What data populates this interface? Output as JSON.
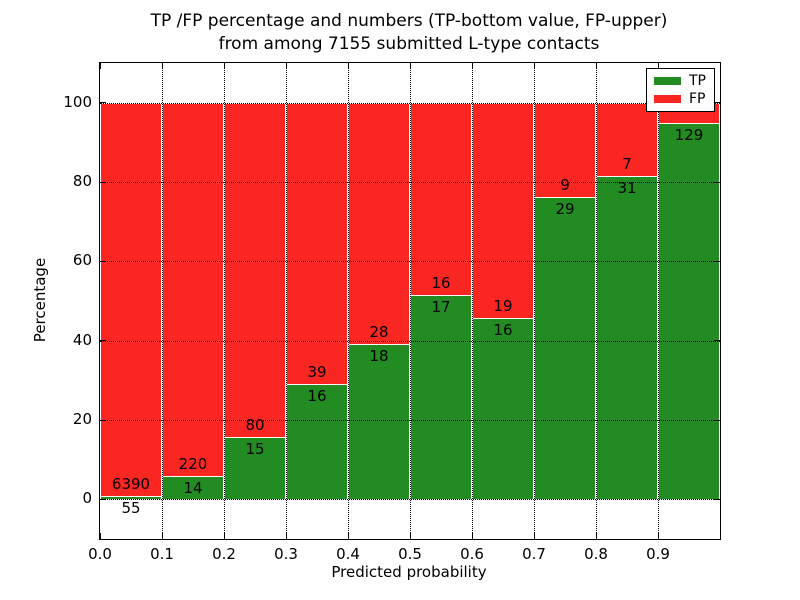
{
  "title": {
    "line1": "TP /FP percentage and numbers (TP-bottom value, FP-upper)",
    "line2": "from among 7155 submitted L-type contacts"
  },
  "axes": {
    "xlabel": "Predicted probability",
    "ylabel": "Percentage",
    "x_tick_labels": [
      "0.0",
      "0.1",
      "0.2",
      "0.3",
      "0.4",
      "0.5",
      "0.6",
      "0.7",
      "0.8",
      "0.9"
    ],
    "y_tick_labels": [
      "0",
      "20",
      "40",
      "60",
      "80",
      "100"
    ],
    "xlim": [
      0.0,
      1.0
    ],
    "ylim": [
      -10,
      110
    ],
    "grid": true
  },
  "legend": [
    {
      "label": "TP",
      "color": "#228b22"
    },
    {
      "label": "FP",
      "color": "#fa2622"
    }
  ],
  "colors": {
    "tp": "#228b22",
    "fp": "#fa2622",
    "bar_edge": "#ffffff",
    "grid": "#000000"
  },
  "chart_data": {
    "type": "bar",
    "stacked": true,
    "title": "TP /FP percentage and numbers (TP-bottom value, FP-upper)\nfrom among 7155 submitted L-type contacts",
    "xlabel": "Predicted probability",
    "ylabel": "Percentage",
    "xlim": [
      0.0,
      1.0
    ],
    "ylim": [
      -10,
      110
    ],
    "grid": true,
    "legend_position": "upper right",
    "bin_width": 0.1,
    "categories": [
      "0.0-0.1",
      "0.1-0.2",
      "0.2-0.3",
      "0.3-0.4",
      "0.4-0.5",
      "0.5-0.6",
      "0.6-0.7",
      "0.7-0.8",
      "0.8-0.9",
      "0.9-1.0"
    ],
    "series_order": [
      "TP (bottom, green)",
      "FP (top, red)"
    ],
    "bins": [
      {
        "x_start": 0.0,
        "tp_count": 55,
        "fp_count": 6390,
        "tp_pct": 0.85,
        "fp_pct": 99.15
      },
      {
        "x_start": 0.1,
        "tp_count": 14,
        "fp_count": 220,
        "tp_pct": 5.98,
        "fp_pct": 94.02
      },
      {
        "x_start": 0.2,
        "tp_count": 15,
        "fp_count": 80,
        "tp_pct": 15.79,
        "fp_pct": 84.21
      },
      {
        "x_start": 0.3,
        "tp_count": 16,
        "fp_count": 39,
        "tp_pct": 29.09,
        "fp_pct": 70.91
      },
      {
        "x_start": 0.4,
        "tp_count": 18,
        "fp_count": 28,
        "tp_pct": 39.13,
        "fp_pct": 60.87
      },
      {
        "x_start": 0.5,
        "tp_count": 17,
        "fp_count": 16,
        "tp_pct": 51.52,
        "fp_pct": 48.48
      },
      {
        "x_start": 0.6,
        "tp_count": 16,
        "fp_count": 19,
        "tp_pct": 45.71,
        "fp_pct": 54.29
      },
      {
        "x_start": 0.7,
        "tp_count": 29,
        "fp_count": 9,
        "tp_pct": 76.32,
        "fp_pct": 23.68
      },
      {
        "x_start": 0.8,
        "tp_count": 31,
        "fp_count": 7,
        "tp_pct": 81.58,
        "fp_pct": 18.42
      },
      {
        "x_start": 0.9,
        "tp_count": 129,
        "fp_count": null,
        "tp_pct": 94.85,
        "fp_pct": 5.15
      }
    ]
  }
}
